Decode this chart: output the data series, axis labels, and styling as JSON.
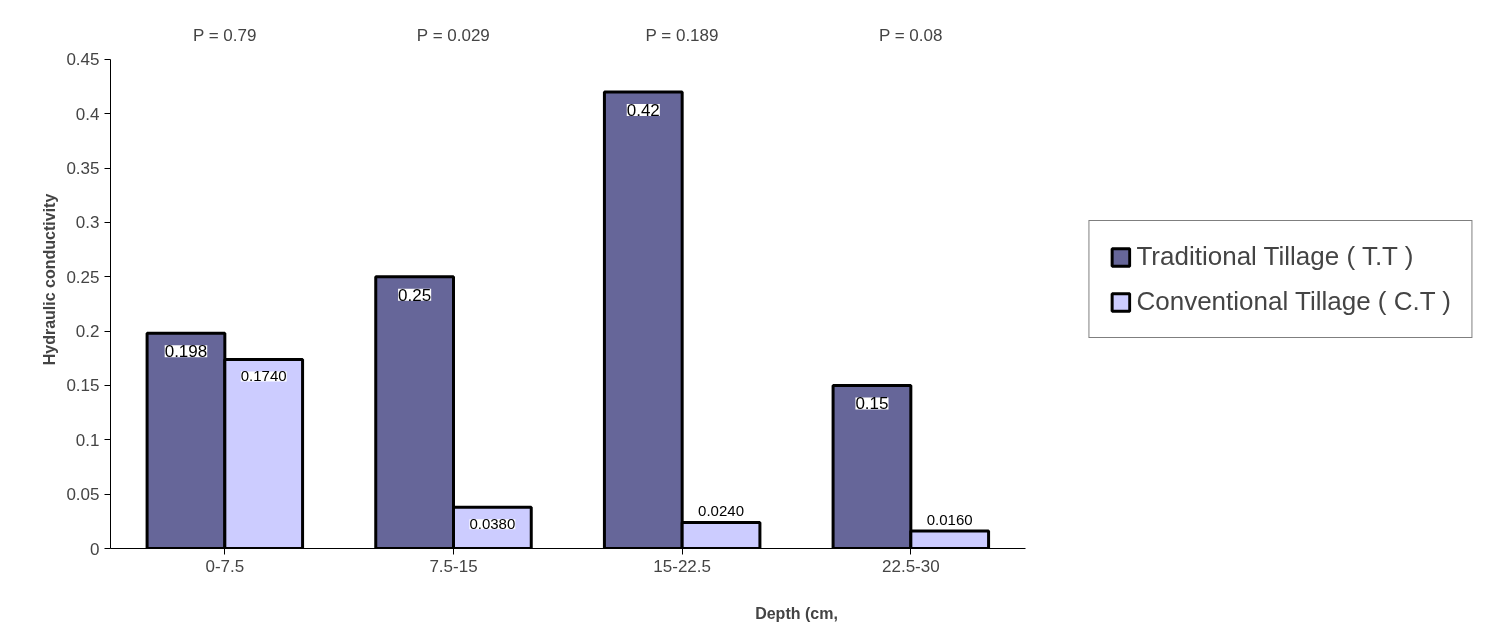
{
  "chart_data": {
    "type": "bar",
    "xlabel": "Depth (cm,",
    "ylabel": "Hydraulic conductivity",
    "categories": [
      "0-7.5",
      "7.5-15",
      "15-22.5",
      "22.5-30"
    ],
    "series": [
      {
        "name": "Traditional Tillage ( T.T )",
        "color": "#666699",
        "values": [
          0.198,
          0.25,
          0.42,
          0.15
        ],
        "value_labels": [
          "0.198",
          "0.25",
          "0.42",
          "0.15"
        ]
      },
      {
        "name": "Conventional Tillage ( C.T )",
        "color": "#ccccff",
        "values": [
          0.174,
          0.038,
          0.024,
          0.016
        ],
        "value_labels": [
          "0.1740",
          "0.0380",
          "0.0240",
          "0.0160"
        ]
      }
    ],
    "ylim": [
      0,
      0.45
    ],
    "yticks": [
      0,
      0.05,
      0.1,
      0.15,
      0.2,
      0.25,
      0.3,
      0.35,
      0.4,
      0.45
    ],
    "annotations": [
      "P = 0.79",
      "P = 0.029",
      "P = 0.189",
      "P = 0.08"
    ],
    "grid": false,
    "legend": "right"
  }
}
